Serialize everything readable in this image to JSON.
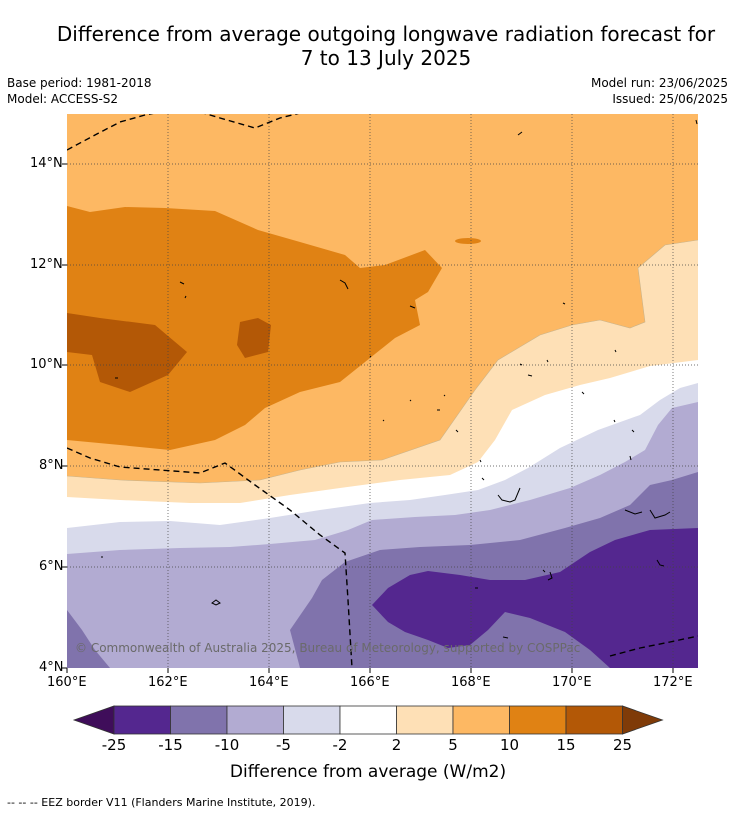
{
  "title_line1": "Difference from average outgoing longwave radiation forecast for",
  "title_line2": "7 to 13 July 2025",
  "base_period": "Base period: 1981-2018",
  "model": "Model: ACCESS-S2",
  "model_run": "Model run: 23/06/2025",
  "issued": "Issued: 25/06/2025",
  "lat_labels": [
    "14°N",
    "12°N",
    "10°N",
    "8°N",
    "6°N",
    "4°N"
  ],
  "lon_labels": [
    "160°E",
    "162°E",
    "164°E",
    "166°E",
    "168°E",
    "170°E",
    "172°E"
  ],
  "colorbar": {
    "ticks": [
      "-25",
      "-15",
      "-10",
      "-5",
      "-2",
      "2",
      "5",
      "10",
      "15",
      "25"
    ],
    "colors": [
      "#3f0d5a",
      "#54278f",
      "#8073ac",
      "#b2abd2",
      "#d8daeb",
      "#ffffff",
      "#fee0b6",
      "#fdb863",
      "#e08214",
      "#b35806",
      "#7f3b08"
    ],
    "title": "Difference from average (W/m2)"
  },
  "copyright": "© Commonwealth of Australia 2025, Bureau of Meteorology, supported by COSPPac",
  "footer": "-- -- -- EEZ border V11 (Flanders Marine Institute, 2019)."
}
